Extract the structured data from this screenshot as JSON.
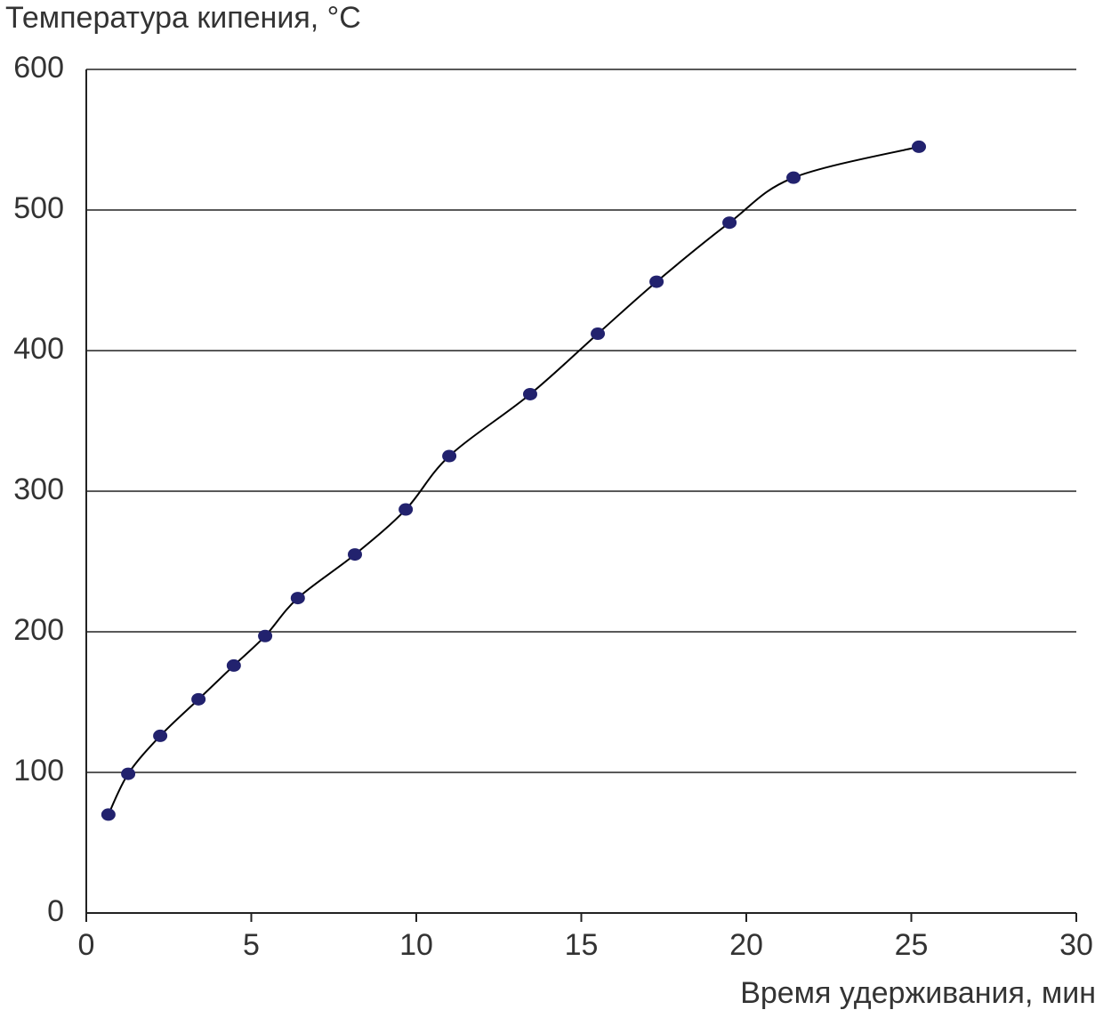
{
  "chart_data": {
    "type": "scatter",
    "title": "Температура кипения, °C",
    "x_label": "Время удерживания, мин",
    "series": [
      {
        "color": "#22226e",
        "line_color": "#000000",
        "x": [
          0.67,
          1.27,
          2.24,
          3.4,
          4.47,
          5.42,
          6.41,
          8.14,
          9.68,
          11.0,
          13.45,
          15.5,
          17.28,
          19.49,
          21.43,
          25.23
        ],
        "values": [
          70,
          99,
          126,
          152,
          176,
          197,
          224,
          255,
          287,
          325,
          369,
          412,
          449,
          491,
          523,
          545
        ]
      }
    ],
    "xlim": [
      0,
      30
    ],
    "xticks": [
      0,
      5,
      10,
      15,
      20,
      25,
      30
    ],
    "ylim": [
      0,
      600
    ],
    "yticks": [
      0,
      100,
      200,
      300,
      400,
      500,
      600
    ],
    "grid": true
  }
}
